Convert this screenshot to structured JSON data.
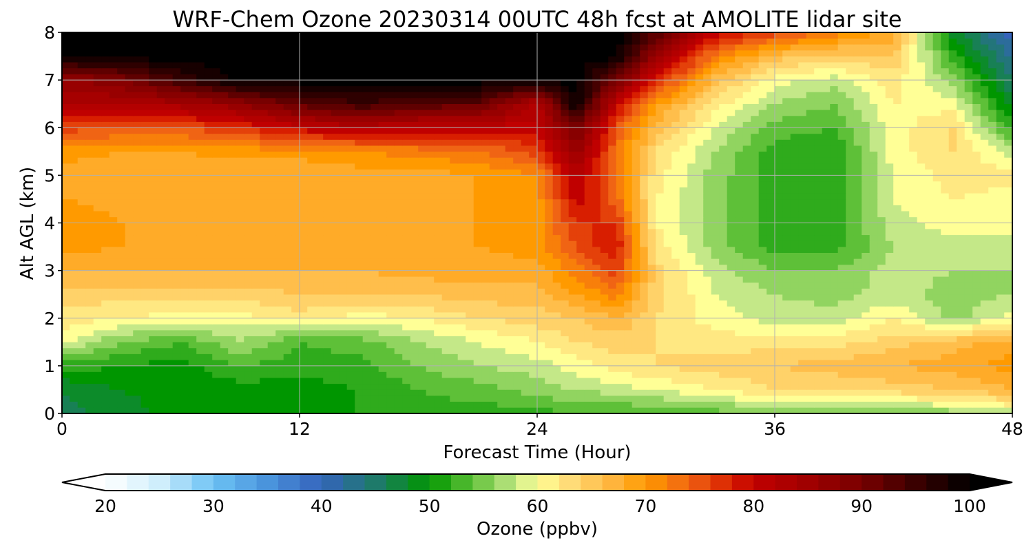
{
  "chart_data": {
    "type": "heatmap",
    "title": "WRF-Chem Ozone  20230314 00UTC 48h fcst at AMOLITE lidar site",
    "xlabel": "Forecast Time (Hour)",
    "ylabel": "Alt AGL (km)",
    "xlim": [
      0,
      48
    ],
    "ylim": [
      0,
      8
    ],
    "xticks": [
      0,
      12,
      24,
      36,
      48
    ],
    "yticks": [
      0,
      1,
      2,
      3,
      4,
      5,
      6,
      7,
      8
    ],
    "xtick_labels": [
      "0",
      "12",
      "24",
      "36",
      "48"
    ],
    "ytick_labels": [
      "0",
      "1",
      "2",
      "3",
      "4",
      "5",
      "6",
      "7",
      "8"
    ],
    "grid": true,
    "x": [
      0,
      3,
      6,
      9,
      12,
      15,
      18,
      21,
      24,
      26,
      28,
      30,
      33,
      36,
      39,
      42,
      45,
      48
    ],
    "y": [
      0,
      0.5,
      1,
      1.5,
      2,
      2.5,
      3,
      3.5,
      4,
      4.5,
      5,
      5.5,
      6,
      6.5,
      7,
      7.5,
      8
    ],
    "z": [
      [
        46,
        48,
        50,
        50,
        50,
        51,
        52,
        52,
        52,
        53,
        53,
        53,
        54,
        55,
        55,
        55,
        56,
        58
      ],
      [
        47,
        49,
        50,
        50,
        50,
        51,
        53,
        54,
        56,
        57,
        58,
        59,
        61,
        63,
        63,
        64,
        65,
        67
      ],
      [
        52,
        51,
        50,
        53,
        52,
        52,
        55,
        57,
        58,
        60,
        62,
        63,
        64,
        65,
        66,
        67,
        68,
        70
      ],
      [
        60,
        55,
        53,
        57,
        53,
        54,
        57,
        59,
        61,
        63,
        64,
        63,
        62,
        62,
        62,
        64,
        66,
        68
      ],
      [
        62,
        61,
        60,
        60,
        62,
        60,
        61,
        63,
        64,
        65,
        67,
        63,
        60,
        58,
        58,
        61,
        56,
        60
      ],
      [
        64,
        64,
        64,
        64,
        65,
        65,
        65,
        66,
        66,
        69,
        72,
        64,
        59,
        57,
        56,
        58,
        56,
        57
      ],
      [
        67,
        67,
        67,
        67,
        67,
        67,
        68,
        68,
        68,
        72,
        76,
        64,
        58,
        55,
        55,
        58,
        57,
        57
      ],
      [
        70,
        69,
        68,
        68,
        68,
        68,
        68,
        69,
        70,
        75,
        79,
        62,
        56,
        52,
        52,
        57,
        58,
        58
      ],
      [
        71,
        69,
        68,
        68,
        68,
        68,
        68,
        69,
        70,
        77,
        77,
        61,
        56,
        52,
        52,
        58,
        60,
        60
      ],
      [
        69,
        68,
        67,
        67,
        67,
        68,
        68,
        69,
        70,
        80,
        74,
        61,
        56,
        52,
        52,
        59,
        61,
        60
      ],
      [
        68,
        67,
        67,
        67,
        67,
        68,
        68,
        69,
        71,
        82,
        72,
        62,
        56,
        52,
        51,
        59,
        62,
        62
      ],
      [
        70,
        69,
        69,
        70,
        70,
        71,
        72,
        73,
        76,
        86,
        73,
        63,
        57,
        52,
        51,
        60,
        63,
        58
      ],
      [
        76,
        75,
        75,
        77,
        80,
        82,
        80,
        80,
        80,
        90,
        75,
        66,
        59,
        54,
        53,
        60,
        63,
        52
      ],
      [
        83,
        83,
        84,
        87,
        92,
        95,
        93,
        92,
        82,
        100,
        80,
        70,
        62,
        57,
        55,
        61,
        60,
        48
      ],
      [
        86,
        89,
        95,
        100,
        100,
        100,
        100,
        100,
        100,
        100,
        90,
        78,
        66,
        60,
        58,
        62,
        56,
        45
      ],
      [
        100,
        100,
        100,
        100,
        100,
        100,
        100,
        100,
        100,
        100,
        100,
        86,
        72,
        66,
        64,
        65,
        52,
        42
      ],
      [
        100,
        100,
        100,
        100,
        100,
        100,
        100,
        100,
        100,
        100,
        100,
        93,
        80,
        76,
        72,
        68,
        48,
        40
      ]
    ],
    "colorbar": {
      "label": "Ozone  (ppbv)",
      "vmin": 20,
      "vmax": 100,
      "ticks": [
        20,
        30,
        40,
        50,
        60,
        70,
        80,
        90,
        100
      ],
      "tick_labels": [
        "20",
        "30",
        "40",
        "50",
        "60",
        "70",
        "80",
        "90",
        "100"
      ],
      "extend": "both",
      "colormap_stops": [
        [
          20,
          "#ffffff"
        ],
        [
          25,
          "#cfeefc"
        ],
        [
          30,
          "#6cc2f4"
        ],
        [
          35,
          "#4a94dc"
        ],
        [
          40,
          "#3563bc"
        ],
        [
          45,
          "#1e7a6a"
        ],
        [
          50,
          "#009600"
        ],
        [
          54,
          "#5ec038"
        ],
        [
          58,
          "#c4e888"
        ],
        [
          60,
          "#ffff96"
        ],
        [
          63,
          "#ffdc78"
        ],
        [
          67,
          "#ffb43c"
        ],
        [
          70,
          "#ff9a00"
        ],
        [
          74,
          "#f06414"
        ],
        [
          78,
          "#d81e00"
        ],
        [
          80,
          "#c00000"
        ],
        [
          85,
          "#a00000"
        ],
        [
          90,
          "#780000"
        ],
        [
          95,
          "#3a0000"
        ],
        [
          100,
          "#000000"
        ]
      ]
    }
  }
}
